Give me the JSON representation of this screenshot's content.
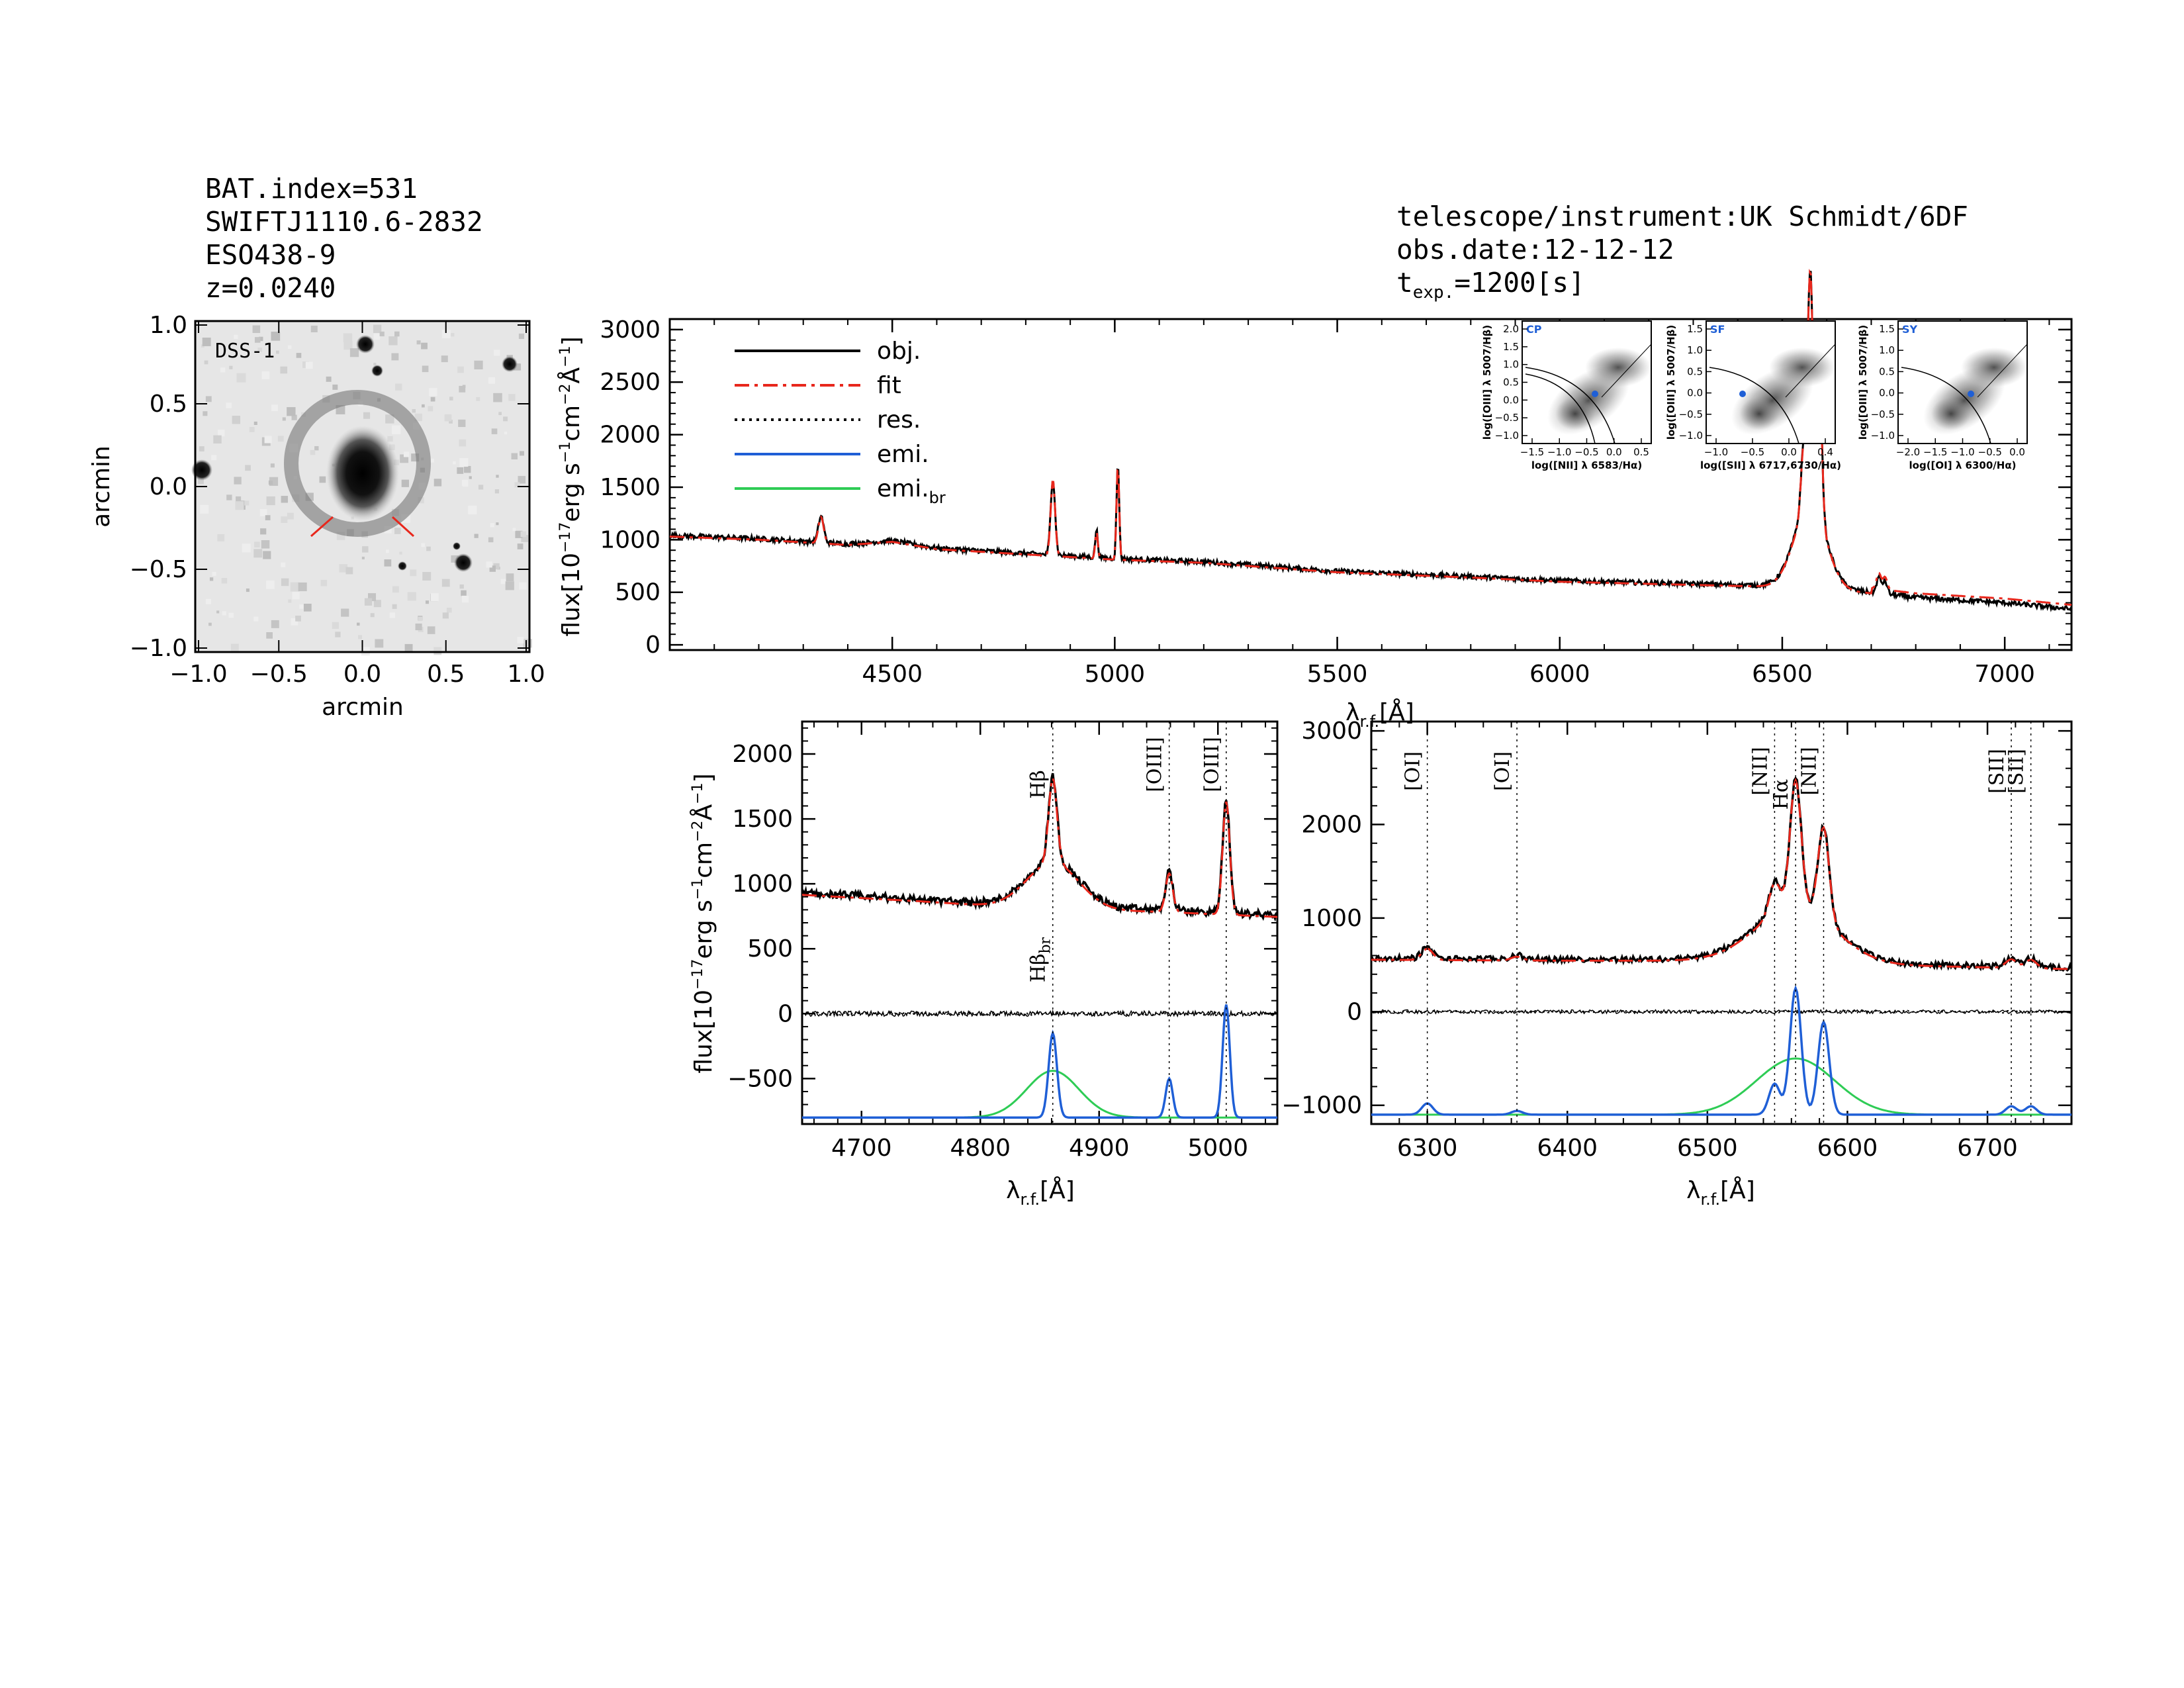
{
  "header_left": {
    "bat_index": "BAT.index=531",
    "swift_name": "SWIFTJ1110.6-2832",
    "galaxy": "ESO438-9",
    "redshift": "z=0.0240"
  },
  "header_right": {
    "telescope": "telescope/instrument:UK Schmidt/6DF",
    "obs_date": "obs.date:12-12-12",
    "texp_prefix": "t",
    "texp_sub": "exp.",
    "texp_value": "=1200[s]"
  },
  "colors": {
    "obj": "#000000",
    "fit": "#e8271c",
    "emi": "#1f5fd6",
    "emi_br": "#2ecc55",
    "red_mark": "#e8271c"
  },
  "image_panel": {
    "label": "DSS-1",
    "xlabel": "arcmin",
    "ylabel": "arcmin",
    "xticks": [
      "−1.0",
      "−0.5",
      "0.0",
      "0.5",
      "1.0"
    ],
    "yticks": [
      "1.0",
      "0.5",
      "0.0",
      "−0.5",
      "−1.0"
    ]
  },
  "legend": [
    {
      "label": "obj.",
      "style": "solid",
      "color": "#000000"
    },
    {
      "label": "fit",
      "style": "dashdot",
      "color": "#e8271c"
    },
    {
      "label": "res.",
      "style": "dotted",
      "color": "#000000"
    },
    {
      "label": "emi.",
      "style": "solid",
      "color": "#1f5fd6"
    },
    {
      "label": "emi.",
      "sub": "br",
      "style": "solid",
      "color": "#2ecc55"
    }
  ],
  "axis_text": {
    "flux_label": "flux[10",
    "flux_exp": "−17",
    "flux_units": "erg s",
    "flux_s_exp": "−1",
    "flux_cm": "cm",
    "flux_cm_exp": "−2",
    "flux_ang": "Å",
    "flux_ang_exp": "−1",
    "flux_close": "]",
    "lambda": "λ",
    "lambda_sub": "r.f.",
    "lambda_unit": "[Å]"
  },
  "bpt": [
    {
      "tag": "CP",
      "xlabel": "log([NII] λ 6583/Hα)",
      "ylabel": "log([OIII] λ 5007/Hβ)",
      "xticks": [
        "−1.5",
        "−1.0",
        "−0.5",
        "0.0",
        "0.5"
      ],
      "yticks": [
        "2.0",
        "1.5",
        "1.0",
        "0.5",
        "0.0",
        "−0.5",
        "−1.0"
      ]
    },
    {
      "tag": "SF",
      "xlabel": "log([SII] λ 6717,6730/Hα)",
      "ylabel": "log([OIII] λ 5007/Hβ)",
      "xticks": [
        "−1.0",
        "−0.5",
        "0.0",
        "0.4"
      ],
      "yticks": [
        "1.5",
        "1.0",
        "0.5",
        "0.0",
        "−0.5",
        "−1.0"
      ]
    },
    {
      "tag": "SY",
      "xlabel": "log([OI] λ 6300/Hα)",
      "ylabel": "log([OIII] λ 5007/Hβ)",
      "xticks": [
        "−2.0",
        "−1.5",
        "−1.0",
        "−0.5",
        "0.0"
      ],
      "yticks": [
        "1.5",
        "1.0",
        "0.5",
        "0.0",
        "−0.5",
        "−1.0"
      ]
    }
  ],
  "line_labels": {
    "hbeta": "Hβ",
    "hbeta_br": "Hβ",
    "hbeta_br_sub": "br",
    "oiii": "[OIII]",
    "oi": "[OI]",
    "nii": "[NII]",
    "halpha": "Hα",
    "sii": "[SII]"
  },
  "chart_data": [
    {
      "id": "main",
      "type": "line",
      "xlim": [
        4000,
        7150
      ],
      "ylim": [
        -50,
        3100
      ],
      "xticks": [
        4500,
        5000,
        5500,
        6000,
        6500,
        7000
      ],
      "yticks": [
        0,
        500,
        1000,
        1500,
        2000,
        2500,
        3000
      ],
      "continuum": [
        [
          4000,
          1040
        ],
        [
          4200,
          1010
        ],
        [
          4400,
          960
        ],
        [
          4500,
          990
        ],
        [
          4600,
          920
        ],
        [
          4800,
          870
        ],
        [
          5000,
          820
        ],
        [
          5200,
          790
        ],
        [
          5500,
          700
        ],
        [
          5800,
          650
        ],
        [
          6000,
          610
        ],
        [
          6200,
          590
        ],
        [
          6400,
          570
        ],
        [
          6500,
          560
        ],
        [
          6700,
          500
        ],
        [
          6800,
          450
        ],
        [
          7000,
          400
        ],
        [
          7150,
          340
        ]
      ],
      "lines": [
        {
          "center": 4340,
          "amp": 250,
          "sigma": 6
        },
        {
          "center": 4861,
          "amp": 720,
          "sigma": 5
        },
        {
          "center": 4959,
          "amp": 260,
          "sigma": 3
        },
        {
          "center": 5007,
          "amp": 900,
          "sigma": 3
        },
        {
          "center": 6548,
          "amp": 600,
          "sigma": 6
        },
        {
          "center": 6563,
          "amp": 2200,
          "sigma": 6
        },
        {
          "center": 6583,
          "amp": 1400,
          "sigma": 6
        },
        {
          "center": 6563,
          "amp": 800,
          "sigma": 35
        },
        {
          "center": 6717,
          "amp": 150,
          "sigma": 5
        },
        {
          "center": 6731,
          "amp": 120,
          "sigma": 5
        }
      ]
    },
    {
      "id": "hbeta",
      "type": "line",
      "xlim": [
        4650,
        5050
      ],
      "ylim": [
        -850,
        2250
      ],
      "xticks": [
        4700,
        4800,
        4900,
        5000
      ],
      "yticks": [
        -500,
        0,
        500,
        1000,
        1500,
        2000
      ],
      "markers": [
        4861,
        4959,
        5007
      ],
      "continuum": [
        [
          4650,
          930
        ],
        [
          4750,
          880
        ],
        [
          4850,
          820
        ],
        [
          4950,
          800
        ],
        [
          5050,
          760
        ]
      ],
      "emi_base": -800,
      "narrow": [
        {
          "center": 4861,
          "amp": 650,
          "sigma": 3.5
        },
        {
          "center": 4959,
          "amp": 300,
          "sigma": 3
        },
        {
          "center": 5007,
          "amp": 870,
          "sigma": 3
        }
      ],
      "broad": [
        {
          "center": 4861,
          "amp": 360,
          "sigma": 22
        }
      ]
    },
    {
      "id": "halpha",
      "type": "line",
      "xlim": [
        6260,
        6760
      ],
      "ylim": [
        -1200,
        3100
      ],
      "xticks": [
        6300,
        6400,
        6500,
        6600,
        6700
      ],
      "yticks": [
        -1000,
        0,
        1000,
        2000,
        3000
      ],
      "markers": [
        6300,
        6364,
        6548,
        6563,
        6583,
        6717,
        6731
      ],
      "continuum": [
        [
          6260,
          570
        ],
        [
          6400,
          560
        ],
        [
          6500,
          560
        ],
        [
          6600,
          520
        ],
        [
          6760,
          470
        ]
      ],
      "emi_base": -1100,
      "narrow": [
        {
          "center": 6300,
          "amp": 120,
          "sigma": 4
        },
        {
          "center": 6364,
          "amp": 40,
          "sigma": 4
        },
        {
          "center": 6548,
          "amp": 330,
          "sigma": 4
        },
        {
          "center": 6563,
          "amp": 1350,
          "sigma": 4
        },
        {
          "center": 6583,
          "amp": 990,
          "sigma": 4
        },
        {
          "center": 6717,
          "amp": 90,
          "sigma": 4
        },
        {
          "center": 6731,
          "amp": 90,
          "sigma": 4
        }
      ],
      "broad": [
        {
          "center": 6563,
          "amp": 600,
          "sigma": 28
        }
      ]
    }
  ]
}
